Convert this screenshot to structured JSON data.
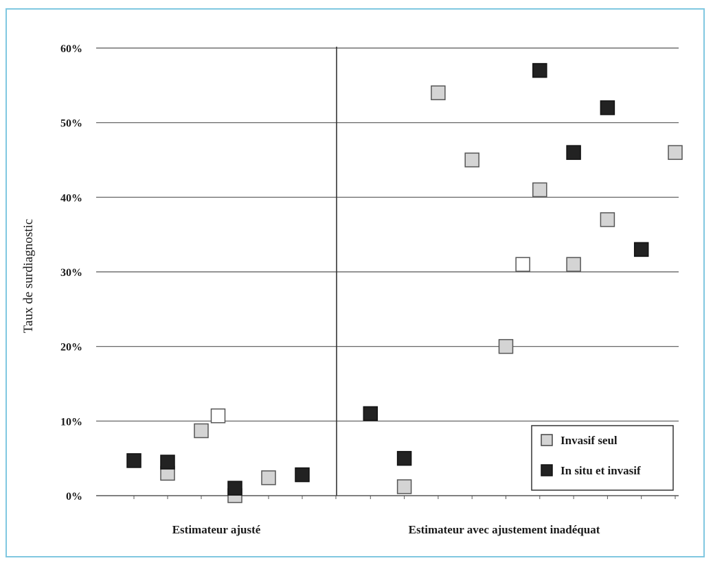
{
  "chart_data": {
    "type": "scatter",
    "title": "",
    "ylabel": "Taux de surdiagnostic",
    "xlabel": "",
    "ylim": [
      0,
      60
    ],
    "y_ticks": [
      "0%",
      "10%",
      "20%",
      "30%",
      "40%",
      "50%",
      "60%"
    ],
    "y_tick_values": [
      0,
      10,
      20,
      30,
      40,
      50,
      60
    ],
    "grid": true,
    "legend_position": "bottom-right",
    "groups": [
      {
        "name": "Estimateur ajusté",
        "slots": 7
      },
      {
        "name": "Estimateur avec ajustement inadéquat",
        "slots": 10
      }
    ],
    "series": [
      {
        "name": "Invasif seul",
        "color": "#d4d4d4",
        "points": [
          {
            "group": 0,
            "slot": 2,
            "y": 3
          },
          {
            "group": 0,
            "slot": 3,
            "y": 8.7
          },
          {
            "group": 0,
            "slot": 4,
            "y": 0
          },
          {
            "group": 0,
            "slot": 5,
            "y": 2.4
          },
          {
            "group": 1,
            "slot": 2,
            "y": 1.2
          },
          {
            "group": 1,
            "slot": 3,
            "y": 54
          },
          {
            "group": 1,
            "slot": 4,
            "y": 45
          },
          {
            "group": 1,
            "slot": 5,
            "y": 20
          },
          {
            "group": 1,
            "slot": 6,
            "y": 41
          },
          {
            "group": 1,
            "slot": 7,
            "y": 31
          },
          {
            "group": 1,
            "slot": 8,
            "y": 37
          },
          {
            "group": 1,
            "slot": 10,
            "y": 46
          }
        ]
      },
      {
        "name": "In situ et invasif",
        "color": "#222222",
        "points": [
          {
            "group": 0,
            "slot": 1,
            "y": 4.7
          },
          {
            "group": 0,
            "slot": 2,
            "y": 4.5
          },
          {
            "group": 0,
            "slot": 4,
            "y": 1
          },
          {
            "group": 0,
            "slot": 6,
            "y": 2.8
          },
          {
            "group": 1,
            "slot": 1,
            "y": 11
          },
          {
            "group": 1,
            "slot": 2,
            "y": 5
          },
          {
            "group": 1,
            "slot": 6,
            "y": 57
          },
          {
            "group": 1,
            "slot": 7,
            "y": 46
          },
          {
            "group": 1,
            "slot": 8,
            "y": 52
          },
          {
            "group": 1,
            "slot": 9,
            "y": 33
          }
        ]
      },
      {
        "name": "",
        "color": "#ffffff",
        "points": [
          {
            "group": 0,
            "slot": 3.5,
            "y": 10.7
          },
          {
            "group": 1,
            "slot": 5.5,
            "y": 31
          }
        ]
      }
    ]
  }
}
